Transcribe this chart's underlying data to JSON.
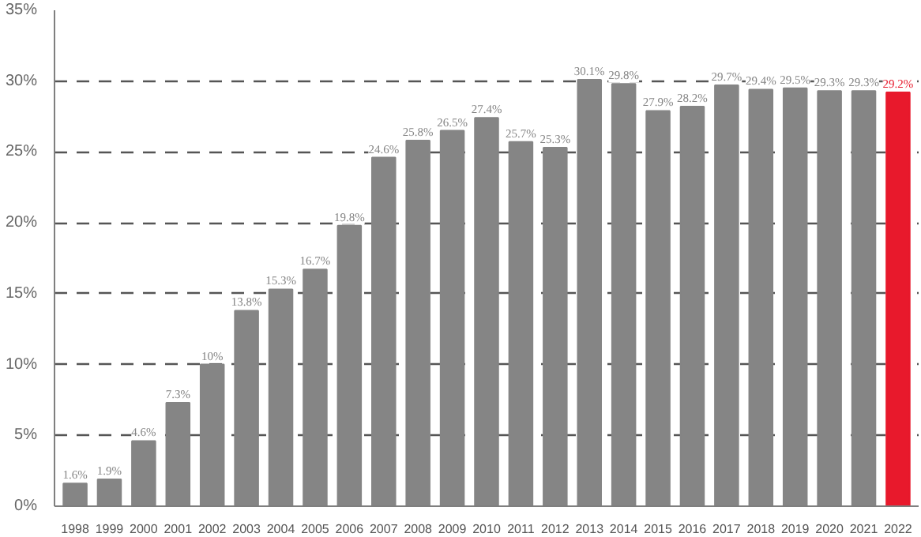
{
  "chart_data": {
    "type": "bar",
    "categories": [
      "1998",
      "1999",
      "2000",
      "2001",
      "2002",
      "2003",
      "2004",
      "2005",
      "2006",
      "2007",
      "2008",
      "2009",
      "2010",
      "2011",
      "2012",
      "2013",
      "2014",
      "2015",
      "2016",
      "2017",
      "2018",
      "2019",
      "2020",
      "2021",
      "2022"
    ],
    "values": [
      1.6,
      1.9,
      4.6,
      7.3,
      10,
      13.8,
      15.3,
      16.7,
      19.8,
      24.6,
      25.8,
      26.5,
      27.4,
      25.7,
      25.3,
      30.1,
      29.8,
      27.9,
      28.2,
      29.7,
      29.4,
      29.5,
      29.3,
      29.3,
      29.2
    ],
    "value_labels": [
      "1.6%",
      "1.9%",
      "4.6%",
      "7.3%",
      "10%",
      "13.8%",
      "15.3%",
      "16.7%",
      "19.8%",
      "24.6%",
      "25.8%",
      "26.5%",
      "27.4%",
      "25.7%",
      "25.3%",
      "30.1%",
      "29.8%",
      "27.9%",
      "28.2%",
      "29.7%",
      "29.4%",
      "29.5%",
      "29.3%",
      "29.3%",
      "29.2%"
    ],
    "colors": [
      "#858585",
      "#858585",
      "#858585",
      "#858585",
      "#858585",
      "#858585",
      "#858585",
      "#858585",
      "#858585",
      "#858585",
      "#858585",
      "#858585",
      "#858585",
      "#858585",
      "#858585",
      "#858585",
      "#858585",
      "#858585",
      "#858585",
      "#858585",
      "#858585",
      "#858585",
      "#858585",
      "#858585",
      "#e8192c"
    ],
    "ylim": [
      0,
      35
    ],
    "yticks": [
      {
        "value": 0,
        "label": "0%"
      },
      {
        "value": 5,
        "label": "5%"
      },
      {
        "value": 10,
        "label": "10%"
      },
      {
        "value": 15,
        "label": "15%"
      },
      {
        "value": 20,
        "label": "20%"
      },
      {
        "value": 25,
        "label": "25%"
      },
      {
        "value": 30,
        "label": "30%"
      },
      {
        "value": 35,
        "label": "35%"
      }
    ],
    "grid": "y"
  }
}
